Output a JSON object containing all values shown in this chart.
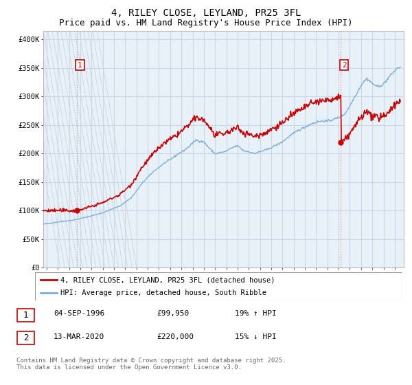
{
  "title": "4, RILEY CLOSE, LEYLAND, PR25 3FL",
  "subtitle": "Price paid vs. HM Land Registry's House Price Index (HPI)",
  "ylabel_ticks": [
    "£0",
    "£50K",
    "£100K",
    "£150K",
    "£200K",
    "£250K",
    "£300K",
    "£350K",
    "£400K"
  ],
  "ytick_values": [
    0,
    50000,
    100000,
    150000,
    200000,
    250000,
    300000,
    350000,
    400000
  ],
  "ylim": [
    0,
    415000
  ],
  "xlim_start": 1993.7,
  "xlim_end": 2025.8,
  "sale1_x": 1996.67,
  "sale1_y": 99950,
  "sale2_x": 2020.2,
  "sale2_y": 220000,
  "line_color_price": "#cc0000",
  "line_color_hpi": "#7aaddb",
  "vline1_color": "#aaaaaa",
  "vline2_color": "#ff8888",
  "legend_label_price": "4, RILEY CLOSE, LEYLAND, PR25 3FL (detached house)",
  "legend_label_hpi": "HPI: Average price, detached house, South Ribble",
  "annotation1_date": "04-SEP-1996",
  "annotation1_price": "£99,950",
  "annotation1_hpi": "19% ↑ HPI",
  "annotation2_date": "13-MAR-2020",
  "annotation2_price": "£220,000",
  "annotation2_hpi": "15% ↓ HPI",
  "copyright_text": "Contains HM Land Registry data © Crown copyright and database right 2025.\nThis data is licensed under the Open Government Licence v3.0.",
  "bg_color_hatch": "#d8d8d8",
  "bg_color_main": "#e8f0f8",
  "grid_color": "#c8d8e8",
  "title_fontsize": 10,
  "subtitle_fontsize": 9,
  "tick_fontsize": 7.5,
  "legend_fontsize": 7.5,
  "annotation_fontsize": 8,
  "copyright_fontsize": 6.5
}
